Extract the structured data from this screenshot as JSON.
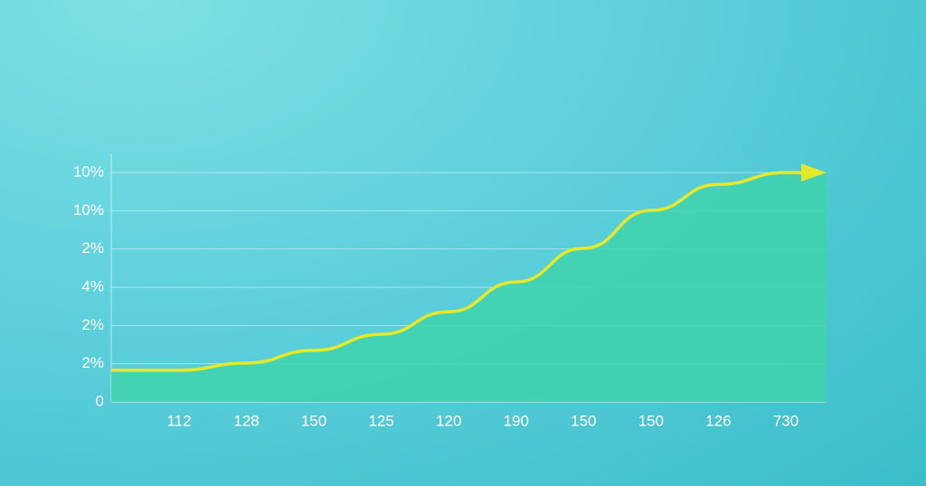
{
  "chart_data": {
    "type": "area",
    "categories": [
      "112",
      "128",
      "150",
      "125",
      "120",
      "190",
      "150",
      "150",
      "126",
      "730"
    ],
    "values": [
      0.83,
      1.02,
      1.35,
      1.77,
      2.36,
      3.14,
      4.02,
      5.01,
      5.69,
      6.0
    ],
    "ylim": [
      0,
      6
    ],
    "yticks": [
      0,
      1,
      2,
      3,
      4,
      5,
      6
    ],
    "y_tick_labels": [
      "0",
      "2%",
      "2%",
      "4%",
      "2%",
      "10%",
      "10%"
    ],
    "color": "#3fd3ad",
    "line_color": "#e6e82a",
    "grid": true
  }
}
